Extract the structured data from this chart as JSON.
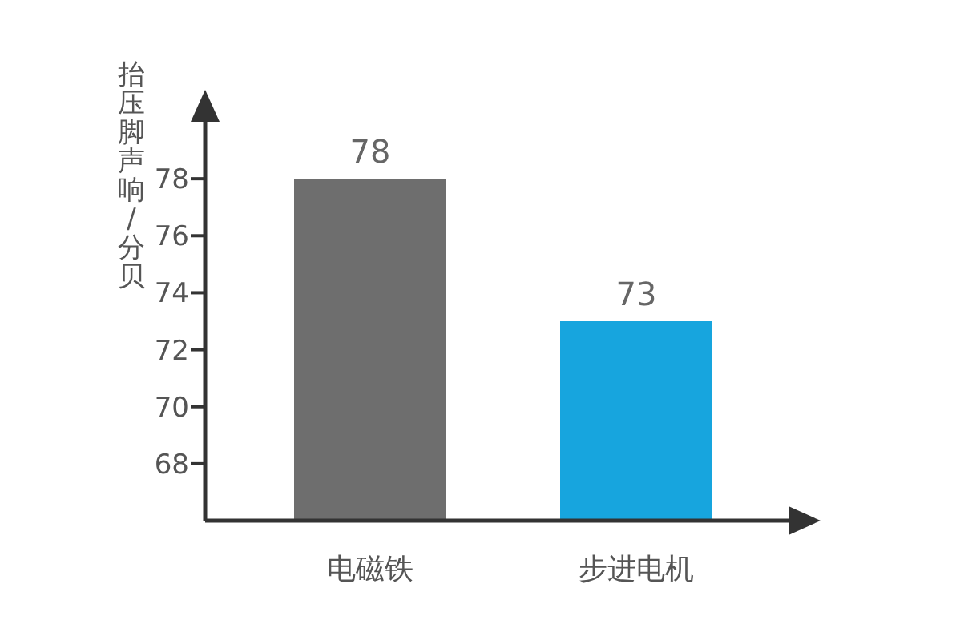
{
  "chart_data": {
    "type": "bar",
    "ylabel": "抬压脚声响/分贝",
    "categories": [
      "电磁铁",
      "步进电机"
    ],
    "values": [
      78,
      73
    ],
    "colors": [
      "#6e6e6e",
      "#17a5de"
    ],
    "ylim": [
      66,
      80
    ],
    "yticks": [
      68,
      70,
      72,
      74,
      76,
      78
    ],
    "data_labels": true
  }
}
